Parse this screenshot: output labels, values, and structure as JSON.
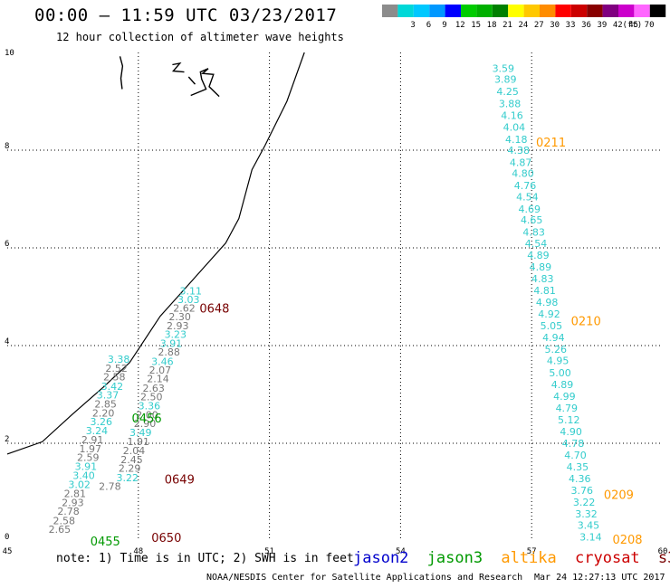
{
  "header": {
    "title": "00:00 – 11:59 UTC 03/23/2017",
    "subtitle": "12 hour collection of altimeter wave heights"
  },
  "footer": {
    "note": "note: 1) Time is in UTC; 2) SWH is in feet",
    "credit": "NOAA/NESDIS Center for Satellite Applications and Research",
    "generated": "Mar 24 12:27:13 UTC 2017"
  },
  "satellites": [
    {
      "name": "jason2",
      "color": "#0000cc"
    },
    {
      "name": "jason3",
      "color": "#009900"
    },
    {
      "name": "altika",
      "color": "#ff9900"
    },
    {
      "name": "cryosat",
      "color": "#cc0000"
    },
    {
      "name": "s3a",
      "color": "#770000"
    }
  ],
  "color_scale": {
    "unit": "(ft)",
    "bins": [
      {
        "label": "",
        "color": "#8c8c8c"
      },
      {
        "label": "3",
        "color": "#00d8d8"
      },
      {
        "label": "6",
        "color": "#00c8ff"
      },
      {
        "label": "9",
        "color": "#0098ff"
      },
      {
        "label": "12",
        "color": "#0000ff"
      },
      {
        "label": "15",
        "color": "#00cc00"
      },
      {
        "label": "18",
        "color": "#00b000"
      },
      {
        "label": "21",
        "color": "#008000"
      },
      {
        "label": "24",
        "color": "#ffff00"
      },
      {
        "label": "27",
        "color": "#ffc800"
      },
      {
        "label": "30",
        "color": "#ff8c00"
      },
      {
        "label": "33",
        "color": "#ff0000"
      },
      {
        "label": "36",
        "color": "#cc0000"
      },
      {
        "label": "39",
        "color": "#880000"
      },
      {
        "label": "42",
        "color": "#800080"
      },
      {
        "label": "45",
        "color": "#cc00cc"
      },
      {
        "label": "70",
        "color": "#ff66ff"
      },
      {
        "label": "",
        "color": "#000000"
      }
    ]
  },
  "chart_data": {
    "type": "scatter",
    "title": "00:00 – 11:59 UTC 03/23/2017",
    "xlim": [
      45,
      60
    ],
    "ylim": [
      0,
      10
    ],
    "xticks": [
      45,
      48,
      51,
      54,
      57,
      60
    ],
    "yticks": [
      0,
      2,
      4,
      6,
      8,
      10
    ],
    "xtick_labels": [
      "45",
      "48",
      "51",
      "54",
      "57",
      "60"
    ],
    "ytick_labels": [
      "0",
      "2",
      "4",
      "6",
      "8",
      "10"
    ],
    "grid": true,
    "coastline": [
      [
        45.0,
        1.78
      ],
      [
        45.8,
        2.03
      ],
      [
        46.5,
        2.6
      ],
      [
        47.2,
        3.15
      ],
      [
        47.8,
        3.65
      ],
      [
        48.5,
        4.6
      ],
      [
        49.0,
        5.1
      ],
      [
        49.5,
        5.6
      ],
      [
        50.0,
        6.1
      ],
      [
        50.3,
        6.6
      ],
      [
        50.6,
        7.6
      ],
      [
        50.9,
        8.1
      ],
      [
        51.4,
        9.0
      ],
      [
        51.8,
        10.0
      ]
    ],
    "islands": [
      [
        [
          47.58,
          9.92
        ],
        [
          47.64,
          9.72
        ],
        [
          47.6,
          9.47
        ],
        [
          47.63,
          9.25
        ]
      ],
      [
        [
          48.78,
          9.75
        ],
        [
          48.95,
          9.78
        ],
        [
          48.8,
          9.62
        ],
        [
          49.05,
          9.6
        ]
      ],
      [
        [
          49.15,
          9.5
        ],
        [
          49.3,
          9.35
        ]
      ],
      [
        [
          49.2,
          9.12
        ],
        [
          49.55,
          9.25
        ],
        [
          49.45,
          9.45
        ],
        [
          49.42,
          9.6
        ],
        [
          49.6,
          9.67
        ],
        [
          49.47,
          9.57
        ],
        [
          49.72,
          9.55
        ],
        [
          49.62,
          9.3
        ],
        [
          49.85,
          9.1
        ]
      ]
    ],
    "series": [
      {
        "satellite": "s3a",
        "pass_labels": [
          {
            "text": "0648",
            "x": 49.4,
            "y": 4.77
          },
          {
            "text": "0649",
            "x": 48.6,
            "y": 1.27
          },
          {
            "text": "0650",
            "x": 48.3,
            "y": 0.07
          }
        ],
        "points": [
          {
            "x": 49.2,
            "y": 5.12,
            "value": 3.11,
            "color": "#33cccc"
          },
          {
            "x": 49.15,
            "y": 4.94,
            "value": 3.03,
            "color": "#33cccc"
          },
          {
            "x": 49.05,
            "y": 4.77,
            "value": 2.62,
            "color": "#777777"
          },
          {
            "x": 48.95,
            "y": 4.59,
            "value": 2.3,
            "color": "#777777"
          },
          {
            "x": 48.9,
            "y": 4.41,
            "value": 2.93,
            "color": "#777777"
          },
          {
            "x": 48.85,
            "y": 4.23,
            "value": 3.23,
            "color": "#33cccc"
          },
          {
            "x": 48.75,
            "y": 4.05,
            "value": 3.91,
            "color": "#33cccc"
          },
          {
            "x": 48.7,
            "y": 3.87,
            "value": 2.88,
            "color": "#777777"
          },
          {
            "x": 48.55,
            "y": 3.68,
            "value": 3.46,
            "color": "#33cccc"
          },
          {
            "x": 48.5,
            "y": 3.5,
            "value": 2.07,
            "color": "#777777"
          },
          {
            "x": 48.45,
            "y": 3.32,
            "value": 2.14,
            "color": "#777777"
          },
          {
            "x": 48.35,
            "y": 3.13,
            "value": 2.63,
            "color": "#777777"
          },
          {
            "x": 48.3,
            "y": 2.95,
            "value": 2.5,
            "color": "#777777"
          },
          {
            "x": 48.25,
            "y": 2.77,
            "value": 3.36,
            "color": "#33cccc"
          },
          {
            "x": 48.2,
            "y": 2.58,
            "value": 2.0,
            "color": "#777777"
          },
          {
            "x": 48.15,
            "y": 2.41,
            "value": 2.9,
            "color": "#777777"
          },
          {
            "x": 48.05,
            "y": 2.22,
            "value": 3.49,
            "color": "#33cccc"
          },
          {
            "x": 48.0,
            "y": 2.04,
            "value": 1.91,
            "color": "#777777"
          },
          {
            "x": 47.9,
            "y": 1.85,
            "value": 2.04,
            "color": "#777777"
          },
          {
            "x": 47.85,
            "y": 1.67,
            "value": 2.45,
            "color": "#777777"
          },
          {
            "x": 47.8,
            "y": 1.49,
            "value": 2.29,
            "color": "#777777"
          },
          {
            "x": 47.75,
            "y": 1.3,
            "value": 3.22,
            "color": "#33cccc"
          },
          {
            "x": 47.35,
            "y": 1.12,
            "value": 2.78,
            "color": "#777777"
          }
        ]
      },
      {
        "satellite": "jason3",
        "pass_labels": [
          {
            "text": "0456",
            "x": 47.85,
            "y": 2.52
          },
          {
            "text": "0455",
            "x": 46.9,
            "y": 0.0
          }
        ],
        "points": [
          {
            "x": 47.55,
            "y": 3.72,
            "value": 3.38,
            "color": "#33cccc"
          },
          {
            "x": 47.5,
            "y": 3.54,
            "value": 2.52,
            "color": "#777777"
          },
          {
            "x": 47.45,
            "y": 3.36,
            "value": 2.58,
            "color": "#777777"
          },
          {
            "x": 47.4,
            "y": 3.17,
            "value": 3.42,
            "color": "#33cccc"
          },
          {
            "x": 47.3,
            "y": 2.99,
            "value": 3.37,
            "color": "#33cccc"
          },
          {
            "x": 47.25,
            "y": 2.81,
            "value": 2.85,
            "color": "#777777"
          },
          {
            "x": 47.2,
            "y": 2.62,
            "value": 2.2,
            "color": "#777777"
          },
          {
            "x": 47.15,
            "y": 2.44,
            "value": 3.26,
            "color": "#33cccc"
          },
          {
            "x": 47.05,
            "y": 2.26,
            "value": 3.24,
            "color": "#33cccc"
          },
          {
            "x": 46.95,
            "y": 2.07,
            "value": 2.91,
            "color": "#777777"
          },
          {
            "x": 46.9,
            "y": 1.89,
            "value": 1.97,
            "color": "#777777"
          },
          {
            "x": 46.85,
            "y": 1.71,
            "value": 2.59,
            "color": "#777777"
          },
          {
            "x": 46.8,
            "y": 1.53,
            "value": 3.91,
            "color": "#33cccc"
          },
          {
            "x": 46.75,
            "y": 1.34,
            "value": 3.4,
            "color": "#33cccc"
          },
          {
            "x": 46.65,
            "y": 1.16,
            "value": 3.02,
            "color": "#33cccc"
          },
          {
            "x": 46.55,
            "y": 0.97,
            "value": 2.81,
            "color": "#777777"
          },
          {
            "x": 46.5,
            "y": 0.79,
            "value": 2.93,
            "color": "#777777"
          },
          {
            "x": 46.4,
            "y": 0.61,
            "value": 2.78,
            "color": "#777777"
          },
          {
            "x": 46.3,
            "y": 0.42,
            "value": 2.58,
            "color": "#777777"
          },
          {
            "x": 46.2,
            "y": 0.24,
            "value": 2.65,
            "color": "#777777"
          }
        ]
      },
      {
        "satellite": "altika",
        "pass_labels": [
          {
            "text": "0211",
            "x": 57.1,
            "y": 8.17
          },
          {
            "text": "0210",
            "x": 57.9,
            "y": 4.51
          },
          {
            "text": "0209",
            "x": 58.65,
            "y": 0.95
          },
          {
            "text": "0208",
            "x": 58.85,
            "y": 0.04
          }
        ],
        "points": [
          {
            "x": 56.35,
            "y": 9.68,
            "value": 3.59,
            "color": "#33cccc"
          },
          {
            "x": 56.4,
            "y": 9.45,
            "value": 3.89,
            "color": "#33cccc"
          },
          {
            "x": 56.45,
            "y": 9.2,
            "value": 4.25,
            "color": "#33cccc"
          },
          {
            "x": 56.5,
            "y": 8.95,
            "value": 3.88,
            "color": "#33cccc"
          },
          {
            "x": 56.55,
            "y": 8.71,
            "value": 4.16,
            "color": "#33cccc"
          },
          {
            "x": 56.6,
            "y": 8.47,
            "value": 4.04,
            "color": "#33cccc"
          },
          {
            "x": 56.65,
            "y": 8.22,
            "value": 4.18,
            "color": "#33cccc"
          },
          {
            "x": 56.7,
            "y": 8.0,
            "value": 4.38,
            "color": "#33cccc"
          },
          {
            "x": 56.75,
            "y": 7.75,
            "value": 4.87,
            "color": "#33cccc"
          },
          {
            "x": 56.8,
            "y": 7.53,
            "value": 4.8,
            "color": "#33cccc"
          },
          {
            "x": 56.85,
            "y": 7.28,
            "value": 4.76,
            "color": "#33cccc"
          },
          {
            "x": 56.9,
            "y": 7.05,
            "value": 4.54,
            "color": "#33cccc"
          },
          {
            "x": 56.95,
            "y": 6.8,
            "value": 4.69,
            "color": "#33cccc"
          },
          {
            "x": 57.0,
            "y": 6.57,
            "value": 4.65,
            "color": "#33cccc"
          },
          {
            "x": 57.05,
            "y": 6.32,
            "value": 4.83,
            "color": "#33cccc"
          },
          {
            "x": 57.1,
            "y": 6.09,
            "value": 4.54,
            "color": "#33cccc"
          },
          {
            "x": 57.15,
            "y": 5.85,
            "value": 4.89,
            "color": "#33cccc"
          },
          {
            "x": 57.2,
            "y": 5.61,
            "value": 4.89,
            "color": "#33cccc"
          },
          {
            "x": 57.25,
            "y": 5.37,
            "value": 4.83,
            "color": "#33cccc"
          },
          {
            "x": 57.3,
            "y": 5.13,
            "value": 4.81,
            "color": "#33cccc"
          },
          {
            "x": 57.35,
            "y": 4.89,
            "value": 4.98,
            "color": "#33cccc"
          },
          {
            "x": 57.4,
            "y": 4.65,
            "value": 4.92,
            "color": "#33cccc"
          },
          {
            "x": 57.45,
            "y": 4.41,
            "value": 5.05,
            "color": "#33cccc"
          },
          {
            "x": 57.5,
            "y": 4.17,
            "value": 4.94,
            "color": "#33cccc"
          },
          {
            "x": 57.55,
            "y": 3.93,
            "value": 5.26,
            "color": "#33cccc"
          },
          {
            "x": 57.6,
            "y": 3.69,
            "value": 4.95,
            "color": "#33cccc"
          },
          {
            "x": 57.65,
            "y": 3.44,
            "value": 5.0,
            "color": "#33cccc"
          },
          {
            "x": 57.7,
            "y": 3.2,
            "value": 4.89,
            "color": "#33cccc"
          },
          {
            "x": 57.75,
            "y": 2.96,
            "value": 4.99,
            "color": "#33cccc"
          },
          {
            "x": 57.8,
            "y": 2.72,
            "value": 4.79,
            "color": "#33cccc"
          },
          {
            "x": 57.85,
            "y": 2.48,
            "value": 5.12,
            "color": "#33cccc"
          },
          {
            "x": 57.9,
            "y": 2.24,
            "value": 4.9,
            "color": "#33cccc"
          },
          {
            "x": 57.95,
            "y": 2.0,
            "value": 4.78,
            "color": "#33cccc"
          },
          {
            "x": 58.0,
            "y": 1.76,
            "value": 4.7,
            "color": "#33cccc"
          },
          {
            "x": 58.05,
            "y": 1.52,
            "value": 4.35,
            "color": "#33cccc"
          },
          {
            "x": 58.1,
            "y": 1.28,
            "value": 4.36,
            "color": "#33cccc"
          },
          {
            "x": 58.15,
            "y": 1.04,
            "value": 3.76,
            "color": "#33cccc"
          },
          {
            "x": 58.2,
            "y": 0.8,
            "value": 3.22,
            "color": "#33cccc"
          },
          {
            "x": 58.25,
            "y": 0.56,
            "value": 3.32,
            "color": "#33cccc"
          },
          {
            "x": 58.3,
            "y": 0.32,
            "value": 3.45,
            "color": "#33cccc"
          },
          {
            "x": 58.35,
            "y": 0.08,
            "value": 3.14,
            "color": "#33cccc"
          }
        ]
      }
    ]
  }
}
